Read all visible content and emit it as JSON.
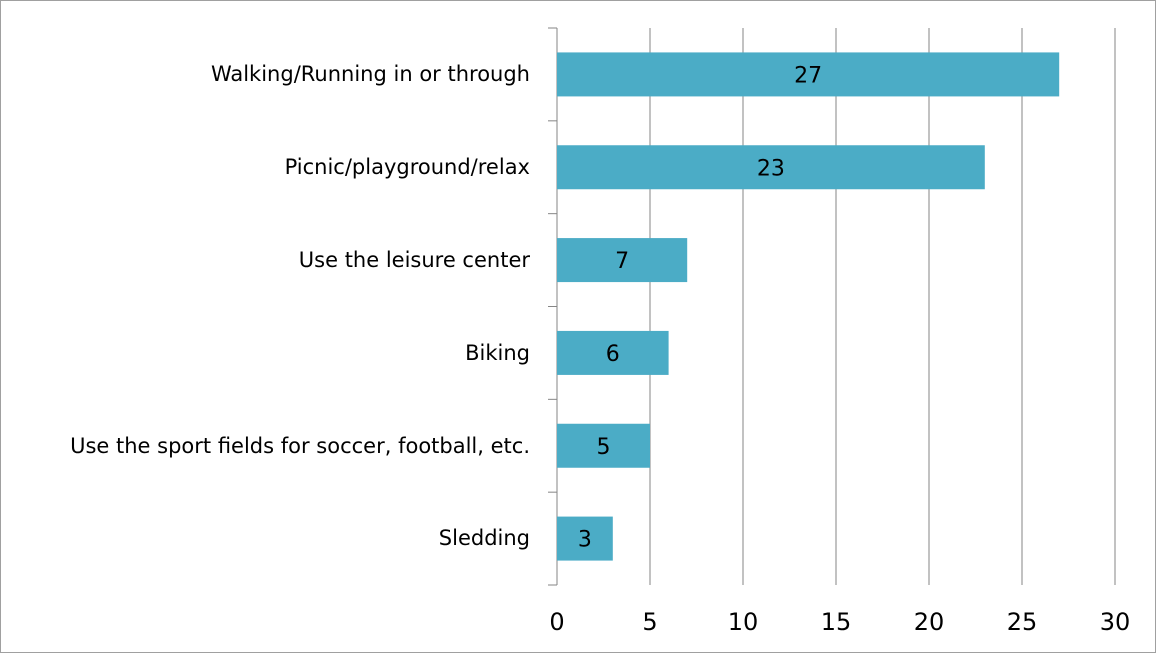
{
  "chart_data": {
    "type": "bar",
    "orientation": "horizontal",
    "categories": [
      "Walking/Running in or through",
      "Picnic/playground/relax",
      "Use the leisure center",
      "Biking",
      "Use the sport fields for soccer, football, etc.",
      "Sledding"
    ],
    "values": [
      27,
      23,
      7,
      6,
      5,
      3
    ],
    "color": "#4bacc6",
    "xlim": [
      0,
      30
    ],
    "xticks": [
      0,
      5,
      10,
      15,
      20,
      25,
      30
    ],
    "grid": true
  }
}
